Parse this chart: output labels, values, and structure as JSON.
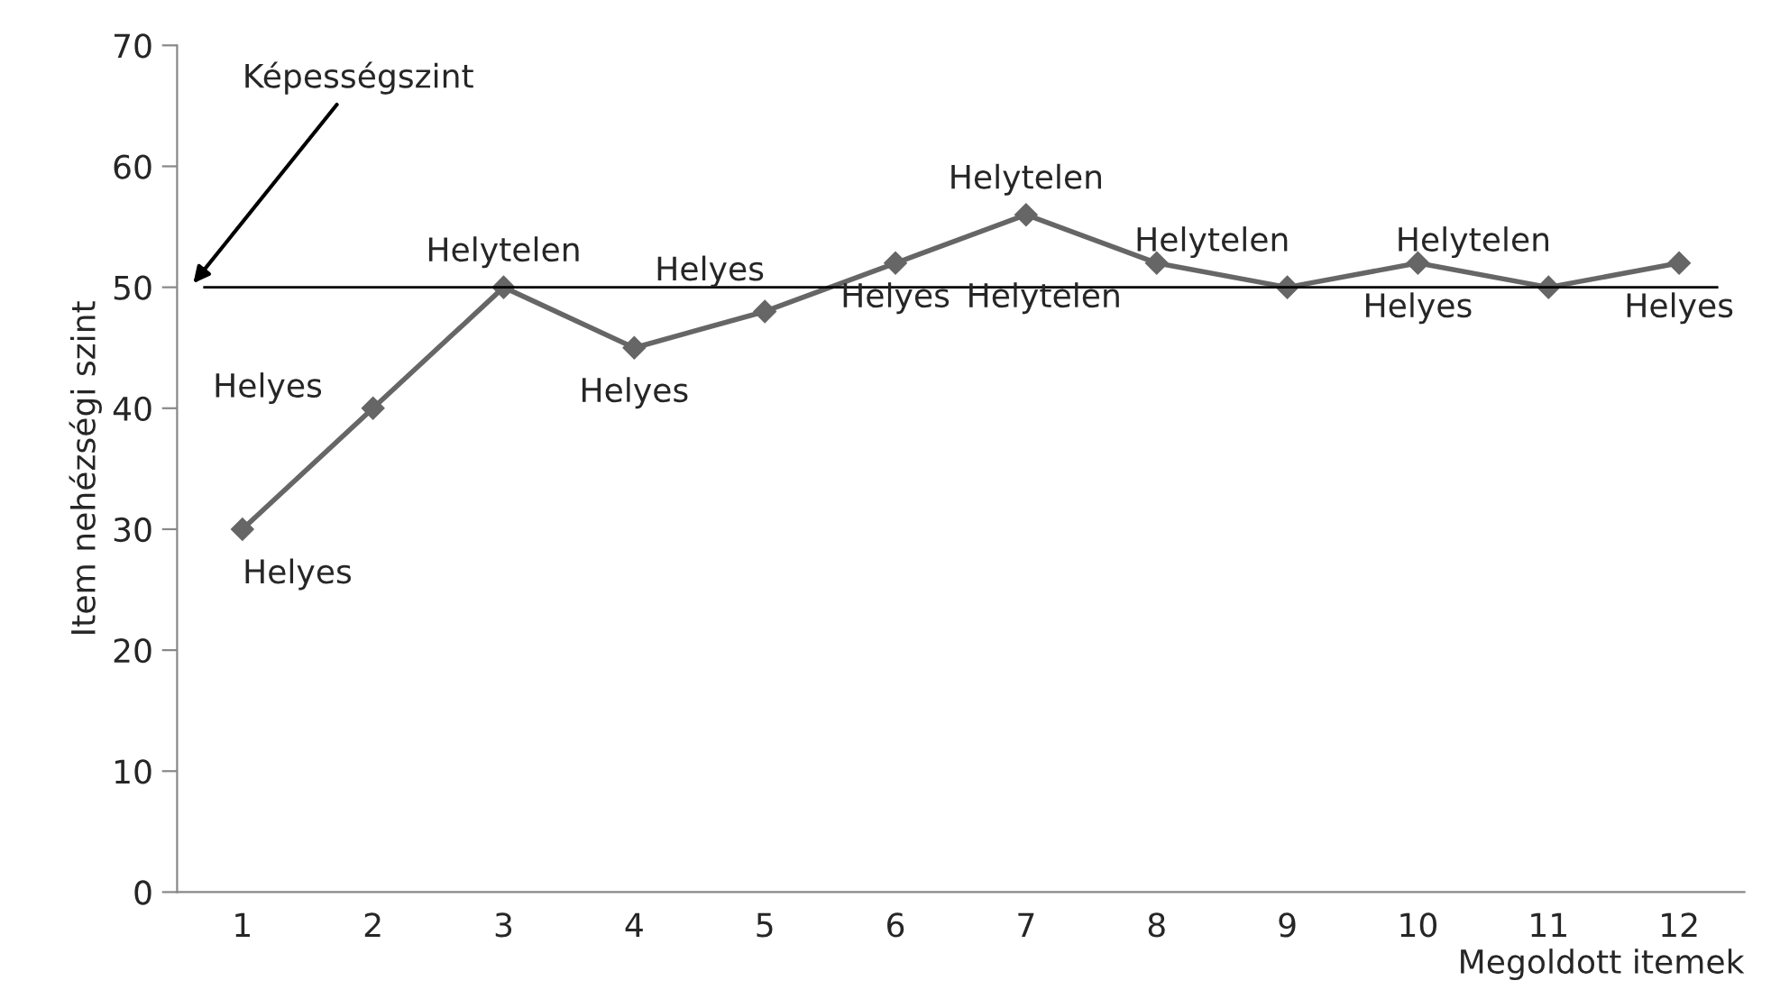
{
  "chart_data": {
    "type": "line",
    "xlabel": "Megoldott itemek",
    "ylabel": "Item nehézségi szint",
    "categories": [
      "1",
      "2",
      "3",
      "4",
      "5",
      "6",
      "7",
      "8",
      "9",
      "10",
      "11",
      "12"
    ],
    "series": [
      {
        "color": "#666666",
        "values": [
          30,
          40,
          50,
          45,
          48,
          52,
          56,
          52,
          50,
          52,
          50,
          52
        ]
      }
    ],
    "ylim": [
      0,
      70
    ],
    "yticks": [
      0,
      10,
      20,
      30,
      40,
      50,
      60,
      70
    ],
    "grid": false,
    "legend": false,
    "marker": "diamond",
    "line_style": "solid",
    "ref_lines": [
      {
        "axis": "y",
        "value": 50,
        "label": "Képességszint",
        "color": "#000000"
      }
    ],
    "annotations": [
      {
        "text": "Helyes",
        "x": "1",
        "y": 30
      },
      {
        "text": "Helyes",
        "x": "2",
        "y": 40
      },
      {
        "text": "Helytelen",
        "x": "3",
        "y": 50
      },
      {
        "text": "Helyes",
        "x": "4",
        "y": 45
      },
      {
        "text": "Helyes",
        "x": "5",
        "y": 48
      },
      {
        "text": "Helyes",
        "x": "6",
        "y": 52
      },
      {
        "text": "Helytelen",
        "x": "7",
        "y": 56
      },
      {
        "text": "Helytelen",
        "x": "8",
        "y": 52
      },
      {
        "text": "Helytelen",
        "x": "9",
        "y": 50
      },
      {
        "text": "Helyes",
        "x": "10",
        "y": 52
      },
      {
        "text": "Helytelen",
        "x": "11",
        "y": 50
      },
      {
        "text": "Helyes",
        "x": "12",
        "y": 52
      }
    ]
  }
}
